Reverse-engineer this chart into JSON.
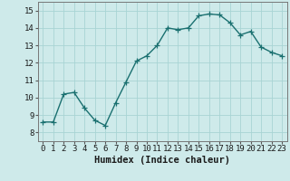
{
  "x": [
    0,
    1,
    2,
    3,
    4,
    5,
    6,
    7,
    8,
    9,
    10,
    11,
    12,
    13,
    14,
    15,
    16,
    17,
    18,
    19,
    20,
    21,
    22,
    23
  ],
  "y": [
    8.6,
    8.6,
    10.2,
    10.3,
    9.4,
    8.7,
    8.4,
    9.7,
    10.9,
    12.1,
    12.4,
    13.0,
    14.0,
    13.9,
    14.0,
    14.7,
    14.8,
    14.75,
    14.3,
    13.6,
    13.8,
    12.9,
    12.6,
    12.4
  ],
  "line_color": "#1a7070",
  "marker": "+",
  "marker_size": 4,
  "bg_color": "#ceeaea",
  "grid_color": "#a8d4d4",
  "xlabel": "Humidex (Indice chaleur)",
  "xlim": [
    -0.5,
    23.5
  ],
  "ylim": [
    7.5,
    15.5
  ],
  "yticks": [
    8,
    9,
    10,
    11,
    12,
    13,
    14,
    15
  ],
  "xticks": [
    0,
    1,
    2,
    3,
    4,
    5,
    6,
    7,
    8,
    9,
    10,
    11,
    12,
    13,
    14,
    15,
    16,
    17,
    18,
    19,
    20,
    21,
    22,
    23
  ],
  "tick_fontsize": 6.5,
  "xlabel_fontsize": 7.5,
  "line_width": 1.0
}
